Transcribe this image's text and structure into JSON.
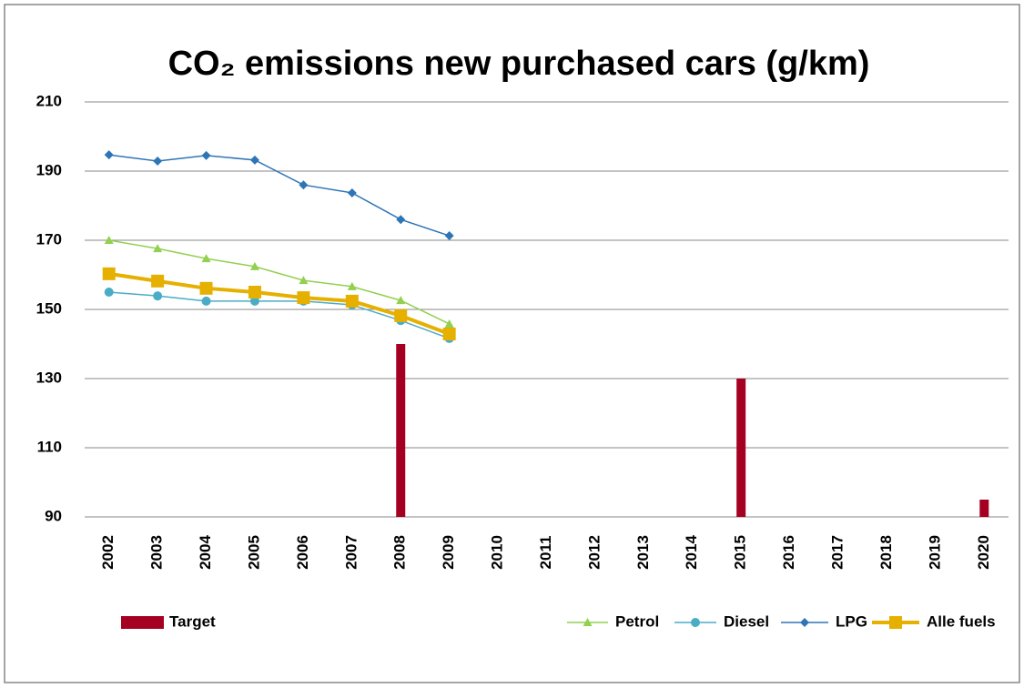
{
  "chart_data": {
    "type": "combo",
    "title": "CO₂ emissions new purchased cars (g/km)",
    "categories": [
      "2002",
      "2003",
      "2004",
      "2005",
      "2006",
      "2007",
      "2008",
      "2009",
      "2010",
      "2011",
      "2012",
      "2013",
      "2014",
      "2015",
      "2016",
      "2017",
      "2018",
      "2019",
      "2020"
    ],
    "ylim": [
      90,
      210
    ],
    "yticks": [
      90,
      110,
      130,
      150,
      170,
      190,
      210
    ],
    "grid": true,
    "series": [
      {
        "name": "Target",
        "type": "bar",
        "color": "#a50021",
        "values": [
          null,
          null,
          null,
          null,
          null,
          null,
          140,
          null,
          null,
          null,
          null,
          null,
          null,
          130,
          null,
          null,
          null,
          null,
          95
        ]
      },
      {
        "name": "Petrol",
        "type": "line",
        "marker": "triangle",
        "color": "#92d050",
        "values": [
          170,
          167.6,
          164.7,
          162.4,
          158.4,
          156.6,
          152.6,
          145.8,
          null,
          null,
          null,
          null,
          null,
          null,
          null,
          null,
          null,
          null,
          null
        ]
      },
      {
        "name": "Diesel",
        "type": "line",
        "marker": "circle",
        "color": "#4bacc6",
        "values": [
          155,
          153.9,
          152.4,
          152.4,
          152.4,
          151.3,
          146.8,
          141.6,
          null,
          null,
          null,
          null,
          null,
          null,
          null,
          null,
          null,
          null,
          null
        ]
      },
      {
        "name": "LPG",
        "type": "line",
        "marker": "diamond",
        "color": "#2e75b6",
        "values": [
          194.7,
          192.9,
          194.5,
          193.2,
          186,
          183.7,
          176,
          171.3,
          null,
          null,
          null,
          null,
          null,
          null,
          null,
          null,
          null,
          null,
          null
        ]
      },
      {
        "name": "Alle fuels",
        "type": "line",
        "marker": "square",
        "color": "#e6b000",
        "values": [
          160.3,
          158.2,
          156.1,
          155,
          153.4,
          152.4,
          148.2,
          142.9,
          null,
          null,
          null,
          null,
          null,
          null,
          null,
          null,
          null,
          null,
          null
        ]
      }
    ]
  }
}
